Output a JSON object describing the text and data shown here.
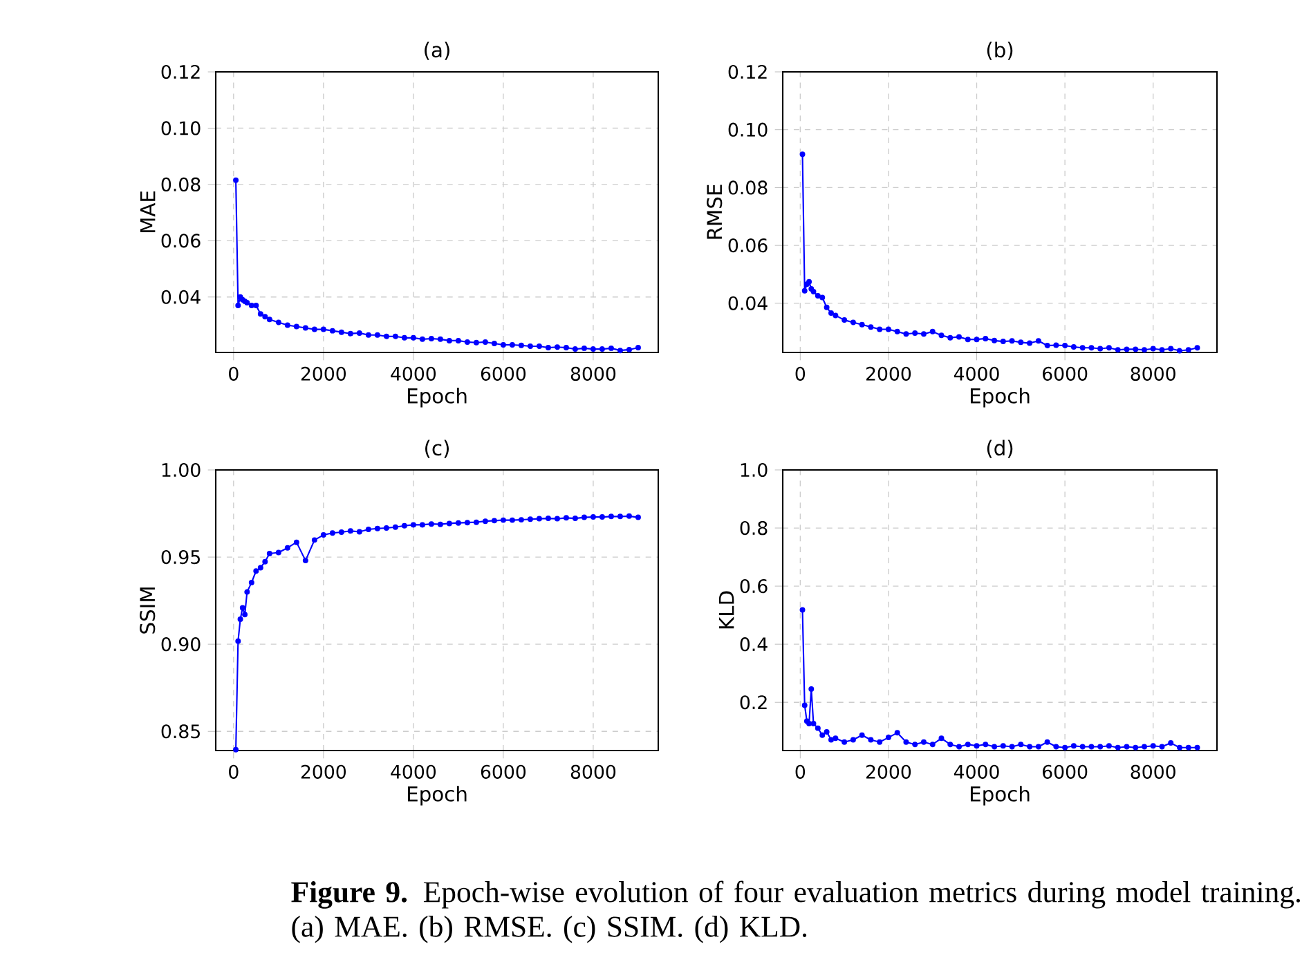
{
  "chart_data": [
    {
      "type": "line",
      "title": "(a)",
      "xlabel": "Epoch",
      "ylabel": "MAE",
      "color": "#0000ff",
      "marker": "circle",
      "line_style": "solid",
      "grid": true,
      "xlim": [
        -397,
        9447
      ],
      "ylim": [
        0.0203,
        0.12
      ],
      "xticks": [
        0,
        2000,
        4000,
        6000,
        8000
      ],
      "yticks": [
        0.04,
        0.06,
        0.08,
        {
          "value": 0.1,
          "label": "0.10"
        },
        0.12
      ],
      "x": [
        50,
        100,
        150,
        200,
        250,
        300,
        400,
        500,
        600,
        700,
        800,
        1000,
        1200,
        1400,
        1600,
        1800,
        2000,
        2200,
        2400,
        2600,
        2800,
        3000,
        3200,
        3400,
        3600,
        3800,
        4000,
        4200,
        4400,
        4600,
        4800,
        5000,
        5200,
        5400,
        5600,
        5800,
        6000,
        6200,
        6400,
        6600,
        6800,
        7000,
        7200,
        7400,
        7600,
        7800,
        8000,
        8200,
        8400,
        8600,
        8800,
        9000
      ],
      "values": [
        0.0815,
        0.037,
        0.04,
        0.039,
        0.0385,
        0.038,
        0.037,
        0.037,
        0.034,
        0.033,
        0.032,
        0.031,
        0.03,
        0.0295,
        0.029,
        0.0285,
        0.0285,
        0.028,
        0.0275,
        0.027,
        0.0272,
        0.0265,
        0.0265,
        0.026,
        0.026,
        0.0255,
        0.0255,
        0.025,
        0.0252,
        0.025,
        0.0245,
        0.0245,
        0.024,
        0.0238,
        0.024,
        0.0235,
        0.023,
        0.023,
        0.0228,
        0.0225,
        0.0225,
        0.022,
        0.0222,
        0.022,
        0.0215,
        0.0218,
        0.0215,
        0.0215,
        0.0218,
        0.021,
        0.0213,
        0.022
      ]
    },
    {
      "type": "line",
      "title": "(b)",
      "xlabel": "Epoch",
      "ylabel": "RMSE",
      "color": "#0000ff",
      "marker": "circle",
      "line_style": "solid",
      "grid": true,
      "xlim": [
        -397,
        9447
      ],
      "ylim": [
        0.023,
        0.12
      ],
      "xticks": [
        0,
        2000,
        4000,
        6000,
        8000
      ],
      "yticks": [
        0.04,
        0.06,
        0.08,
        {
          "value": 0.1,
          "label": "0.10"
        },
        0.12
      ],
      "x": [
        50,
        100,
        150,
        200,
        250,
        300,
        400,
        500,
        600,
        700,
        800,
        1000,
        1200,
        1400,
        1600,
        1800,
        2000,
        2200,
        2400,
        2600,
        2800,
        3000,
        3200,
        3400,
        3600,
        3800,
        4000,
        4200,
        4400,
        4600,
        4800,
        5000,
        5200,
        5400,
        5600,
        5800,
        6000,
        6200,
        6400,
        6600,
        6800,
        7000,
        7200,
        7400,
        7600,
        7800,
        8000,
        8200,
        8400,
        8600,
        8800,
        9000
      ],
      "values": [
        0.0915,
        0.0443,
        0.0466,
        0.0474,
        0.045,
        0.044,
        0.0426,
        0.042,
        0.0386,
        0.0366,
        0.0358,
        0.0342,
        0.0334,
        0.0326,
        0.0318,
        0.031,
        0.031,
        0.0302,
        0.0294,
        0.0297,
        0.0294,
        0.0302,
        0.0289,
        0.0281,
        0.0284,
        0.0275,
        0.0275,
        0.0278,
        0.0271,
        0.0268,
        0.027,
        0.0265,
        0.0262,
        0.027,
        0.0254,
        0.0255,
        0.0254,
        0.0249,
        0.0246,
        0.0246,
        0.0243,
        0.0246,
        0.0239,
        0.0241,
        0.0241,
        0.0239,
        0.0243,
        0.0239,
        0.0243,
        0.0236,
        0.0239,
        0.0246
      ]
    },
    {
      "type": "line",
      "title": "(c)",
      "xlabel": "Epoch",
      "ylabel": "SSIM",
      "color": "#0000ff",
      "marker": "circle",
      "line_style": "solid",
      "grid": true,
      "xlim": [
        -397,
        9447
      ],
      "ylim": [
        0.839,
        1.0
      ],
      "xticks": [
        0,
        2000,
        4000,
        6000,
        8000
      ],
      "yticks": [
        0.85,
        {
          "value": 0.9,
          "label": "0.90"
        },
        0.95,
        {
          "value": 1.0,
          "label": "1.00"
        }
      ],
      "x": [
        50,
        100,
        150,
        200,
        250,
        300,
        400,
        500,
        600,
        700,
        800,
        1000,
        1200,
        1400,
        1600,
        1800,
        2000,
        2200,
        2400,
        2600,
        2800,
        3000,
        3200,
        3400,
        3600,
        3800,
        4000,
        4200,
        4400,
        4600,
        4800,
        5000,
        5200,
        5400,
        5600,
        5800,
        6000,
        6200,
        6400,
        6600,
        6800,
        7000,
        7200,
        7400,
        7600,
        7800,
        8000,
        8200,
        8400,
        8600,
        8800,
        9000
      ],
      "values": [
        0.8395,
        0.9018,
        0.9143,
        0.9209,
        0.917,
        0.93,
        0.9354,
        0.942,
        0.9439,
        0.9474,
        0.952,
        0.9526,
        0.9553,
        0.9585,
        0.948,
        0.9598,
        0.9627,
        0.9638,
        0.9643,
        0.965,
        0.9645,
        0.9659,
        0.9664,
        0.9667,
        0.9672,
        0.968,
        0.9685,
        0.9685,
        0.969,
        0.9688,
        0.9693,
        0.9696,
        0.9698,
        0.97,
        0.9706,
        0.9709,
        0.9712,
        0.9712,
        0.9714,
        0.9717,
        0.972,
        0.9722,
        0.972,
        0.9725,
        0.9722,
        0.9728,
        0.973,
        0.973,
        0.9733,
        0.9733,
        0.9735,
        0.9728
      ]
    },
    {
      "type": "line",
      "title": "(d)",
      "xlabel": "Epoch",
      "ylabel": "KLD",
      "color": "#0000ff",
      "marker": "circle",
      "line_style": "solid",
      "grid": true,
      "xlim": [
        -397,
        9447
      ],
      "ylim": [
        0.034,
        1.0
      ],
      "xticks": [
        0,
        2000,
        4000,
        6000,
        8000
      ],
      "yticks": [
        0.2,
        0.4,
        0.6,
        0.8,
        {
          "value": 1.0,
          "label": "1.0"
        }
      ],
      "x": [
        50,
        100,
        150,
        200,
        250,
        300,
        400,
        500,
        600,
        700,
        800,
        1000,
        1200,
        1400,
        1600,
        1800,
        2000,
        2200,
        2400,
        2600,
        2800,
        3000,
        3200,
        3400,
        3600,
        3800,
        4000,
        4200,
        4400,
        4600,
        4800,
        5000,
        5200,
        5400,
        5600,
        5800,
        6000,
        6200,
        6400,
        6600,
        6800,
        7000,
        7200,
        7400,
        7600,
        7800,
        8000,
        8200,
        8400,
        8600,
        8800,
        9000
      ],
      "values": [
        0.518,
        0.19,
        0.135,
        0.127,
        0.246,
        0.127,
        0.111,
        0.087,
        0.098,
        0.071,
        0.076,
        0.063,
        0.071,
        0.087,
        0.071,
        0.063,
        0.079,
        0.095,
        0.063,
        0.055,
        0.063,
        0.055,
        0.076,
        0.055,
        0.047,
        0.055,
        0.05,
        0.055,
        0.047,
        0.05,
        0.047,
        0.055,
        0.047,
        0.047,
        0.063,
        0.047,
        0.044,
        0.05,
        0.047,
        0.047,
        0.047,
        0.05,
        0.044,
        0.047,
        0.044,
        0.047,
        0.05,
        0.047,
        0.06,
        0.044,
        0.044,
        0.044
      ],
      "annotations": [
        "**Figure 9.** Epoch-wise evolution of four evaluation metrics during model training. (a) MAE. (b) RMSE. (c) SSIM. (d) KLD."
      ]
    }
  ]
}
